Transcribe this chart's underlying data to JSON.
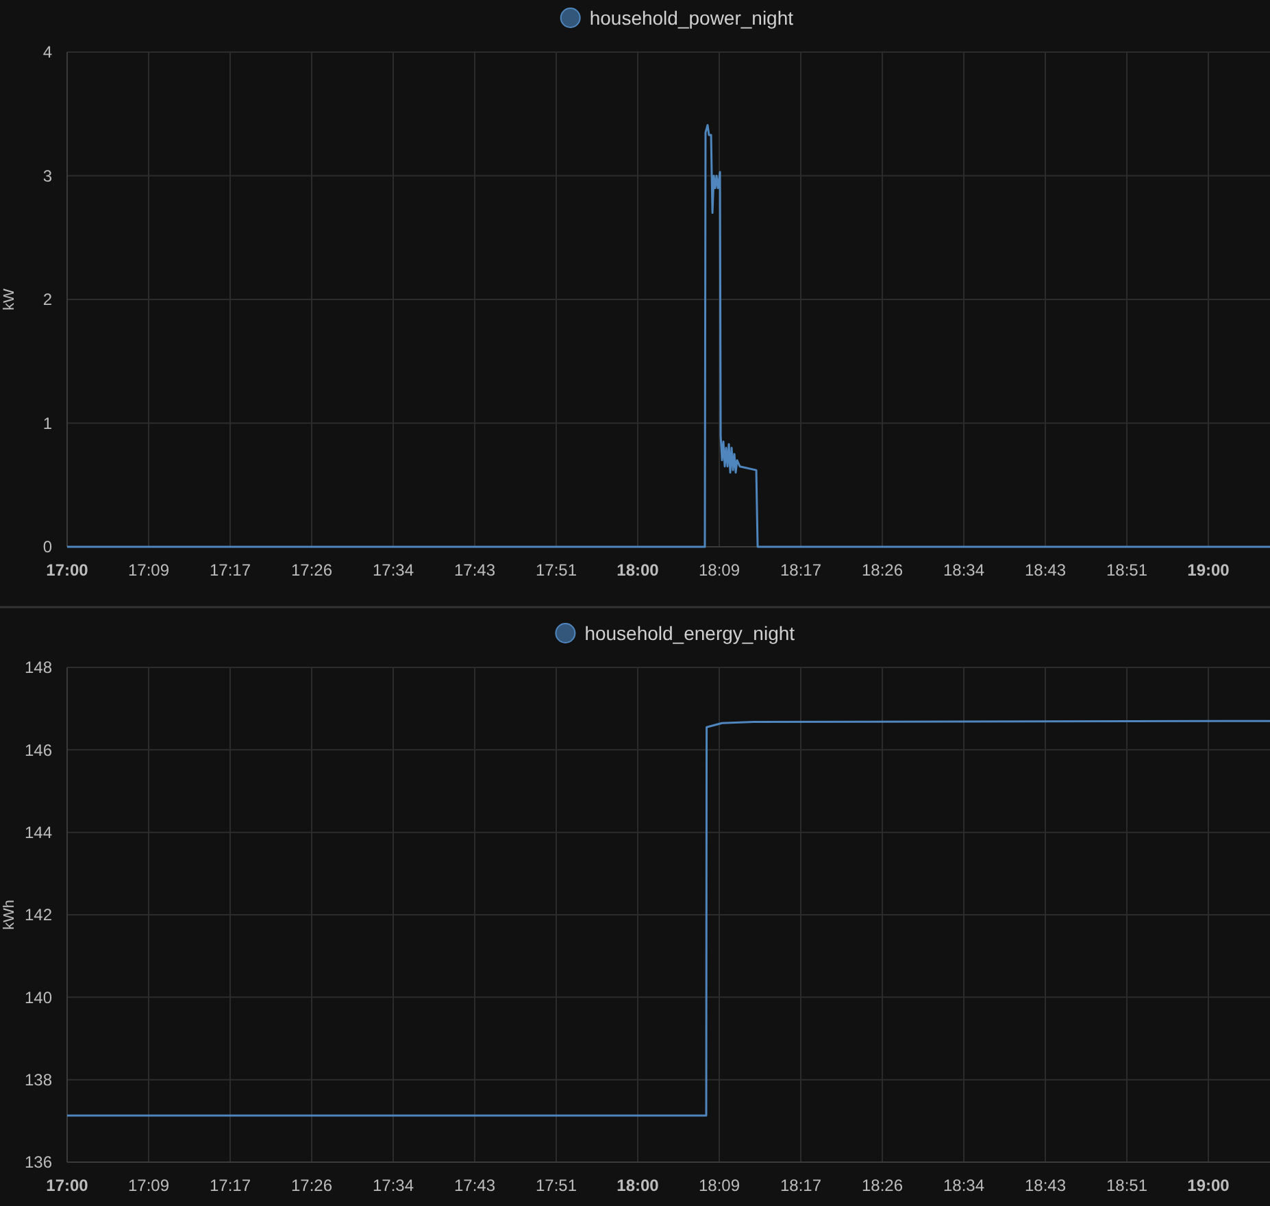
{
  "chart_data": [
    {
      "type": "line",
      "ylabel": "kW",
      "legend": "top",
      "grid": true,
      "marker": "none",
      "line_style": "solid",
      "xlim": [
        17,
        19.108
      ],
      "ylim": [
        0,
        4
      ],
      "yticks": [
        0,
        1,
        2,
        3,
        4
      ],
      "xticks": [
        {
          "value": 17,
          "label": "17:00"
        },
        {
          "value": 17.142857,
          "label": "17:09"
        },
        {
          "value": 17.285714,
          "label": "17:17"
        },
        {
          "value": 17.428571,
          "label": "17:26"
        },
        {
          "value": 17.571429,
          "label": "17:34"
        },
        {
          "value": 17.714286,
          "label": "17:43"
        },
        {
          "value": 17.857143,
          "label": "17:51"
        },
        {
          "value": 18,
          "label": "18:00"
        },
        {
          "value": 18.142857,
          "label": "18:09"
        },
        {
          "value": 18.285714,
          "label": "18:17"
        },
        {
          "value": 18.428571,
          "label": "18:26"
        },
        {
          "value": 18.571429,
          "label": "18:34"
        },
        {
          "value": 18.714286,
          "label": "18:43"
        },
        {
          "value": 18.857143,
          "label": "18:51"
        },
        {
          "value": 19,
          "label": "19:00"
        }
      ],
      "series": [
        {
          "name": "household_power_night",
          "color": "#4f86bd",
          "x": [
            17,
            18.1176,
            18.1188,
            18.1224,
            18.1248,
            18.1285,
            18.1297,
            18.1309,
            18.1333,
            18.1357,
            18.1381,
            18.1405,
            18.1441,
            18.1453,
            18.1477,
            18.1501,
            18.1525,
            18.1549,
            18.1573,
            18.1597,
            18.1621,
            18.1645,
            18.1669,
            18.1693,
            18.1717,
            18.1741,
            18.1789,
            18.2077,
            18.2101,
            19.108
          ],
          "values": [
            0,
            0,
            3.35,
            3.41,
            3.33,
            3.33,
            3.0,
            2.7,
            3.0,
            2.9,
            3.0,
            2.9,
            3.03,
            0.9,
            0.7,
            0.85,
            0.65,
            0.8,
            0.65,
            0.83,
            0.6,
            0.8,
            0.62,
            0.75,
            0.6,
            0.7,
            0.65,
            0.62,
            0,
            0
          ]
        }
      ]
    },
    {
      "type": "line",
      "ylabel": "kWh",
      "legend": "top",
      "grid": true,
      "marker": "none",
      "line_style": "solid",
      "xlim": [
        17,
        19.108
      ],
      "ylim": [
        136,
        148
      ],
      "yticks": [
        136,
        138,
        140,
        142,
        144,
        146,
        148
      ],
      "xticks": [
        {
          "value": 17,
          "label": "17:00"
        },
        {
          "value": 17.142857,
          "label": "17:09"
        },
        {
          "value": 17.285714,
          "label": "17:17"
        },
        {
          "value": 17.428571,
          "label": "17:26"
        },
        {
          "value": 17.571429,
          "label": "17:34"
        },
        {
          "value": 17.714286,
          "label": "17:43"
        },
        {
          "value": 17.857143,
          "label": "17:51"
        },
        {
          "value": 18,
          "label": "18:00"
        },
        {
          "value": 18.142857,
          "label": "18:09"
        },
        {
          "value": 18.285714,
          "label": "18:17"
        },
        {
          "value": 18.428571,
          "label": "18:26"
        },
        {
          "value": 18.571429,
          "label": "18:34"
        },
        {
          "value": 18.714286,
          "label": "18:43"
        },
        {
          "value": 18.857143,
          "label": "18:51"
        },
        {
          "value": 19,
          "label": "19:00"
        }
      ],
      "series": [
        {
          "name": "household_energy_night",
          "color": "#4f86bd",
          "x": [
            17,
            18.12,
            18.1207,
            18.1477,
            18.2029,
            19.108
          ],
          "values": [
            137.13,
            137.13,
            146.55,
            146.65,
            146.68,
            146.7
          ]
        }
      ]
    }
  ]
}
